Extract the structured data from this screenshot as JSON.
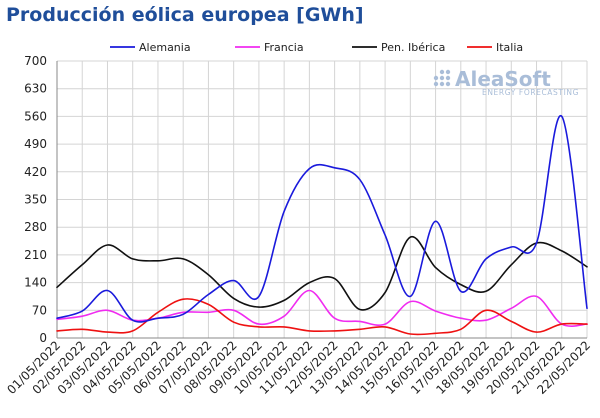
{
  "chart_data": {
    "type": "line",
    "title": "Producción eólica europea [GWh]",
    "xlabel": "",
    "ylabel": "",
    "ylim": [
      0,
      700
    ],
    "yticks": [
      0,
      70,
      140,
      210,
      280,
      350,
      420,
      490,
      560,
      630,
      700
    ],
    "grid": true,
    "legend": "top",
    "categories": [
      "01/05/2022",
      "02/05/2022",
      "03/05/2022",
      "04/05/2022",
      "05/05/2022",
      "06/05/2022",
      "07/05/2022",
      "08/05/2022",
      "09/05/2022",
      "10/05/2022",
      "11/05/2022",
      "12/05/2022",
      "13/05/2022",
      "14/05/2022",
      "15/05/2022",
      "16/05/2022",
      "17/05/2022",
      "18/05/2022",
      "19/05/2022",
      "20/05/2022",
      "21/05/2022",
      "22/05/2022"
    ],
    "series": [
      {
        "name": "Alemania",
        "color": "#1a1adc",
        "values": [
          50,
          68,
          120,
          45,
          50,
          60,
          110,
          145,
          105,
          320,
          428,
          430,
          400,
          260,
          105,
          295,
          118,
          200,
          230,
          240,
          560,
          75
        ]
      },
      {
        "name": "Francia",
        "color": "#f02cf0",
        "values": [
          47,
          55,
          70,
          45,
          50,
          65,
          65,
          70,
          35,
          55,
          120,
          50,
          42,
          35,
          92,
          68,
          50,
          45,
          75,
          105,
          35,
          35
        ]
      },
      {
        "name": "Pen. Ibérica",
        "color": "#111111",
        "values": [
          128,
          185,
          235,
          200,
          195,
          200,
          160,
          100,
          78,
          95,
          140,
          150,
          72,
          115,
          255,
          178,
          135,
          118,
          185,
          240,
          220,
          180
        ]
      },
      {
        "name": "Italia",
        "color": "#ee1111",
        "values": [
          18,
          22,
          15,
          18,
          65,
          98,
          85,
          40,
          28,
          28,
          18,
          18,
          22,
          28,
          10,
          12,
          22,
          70,
          42,
          15,
          35,
          35
        ]
      }
    ]
  },
  "watermark": {
    "brand": "AleaSoft",
    "tagline": "ENERGY FORECASTING"
  }
}
